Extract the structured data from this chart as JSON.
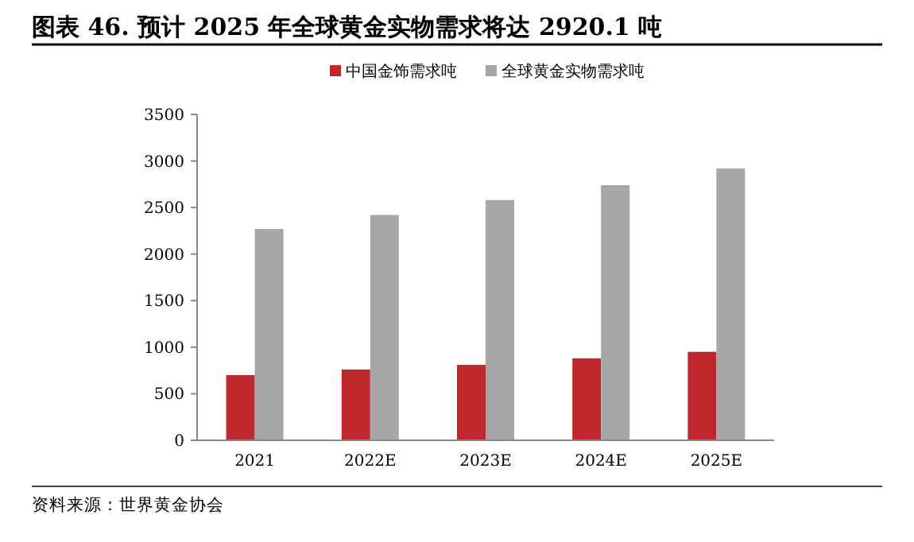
{
  "chart_data": {
    "type": "bar",
    "title": "图表 46. 预计 2025 年全球黄金实物需求将达 2920.1 吨",
    "categories": [
      "2021",
      "2022E",
      "2023E",
      "2024E",
      "2025E"
    ],
    "series": [
      {
        "name": "中国金饰需求吨",
        "color": "#c0272d",
        "values": [
          700,
          760,
          810,
          880,
          950
        ]
      },
      {
        "name": "全球黄金实物需求吨",
        "color": "#a6a6a6",
        "values": [
          2270,
          2420,
          2580,
          2740,
          2920
        ]
      }
    ],
    "ylim": [
      0,
      3500
    ],
    "yticks": [
      0,
      500,
      1000,
      1500,
      2000,
      2500,
      3000,
      3500
    ],
    "legend": "top",
    "grid": false,
    "annotations": [
      "资料来源：世界黄金协会"
    ]
  }
}
